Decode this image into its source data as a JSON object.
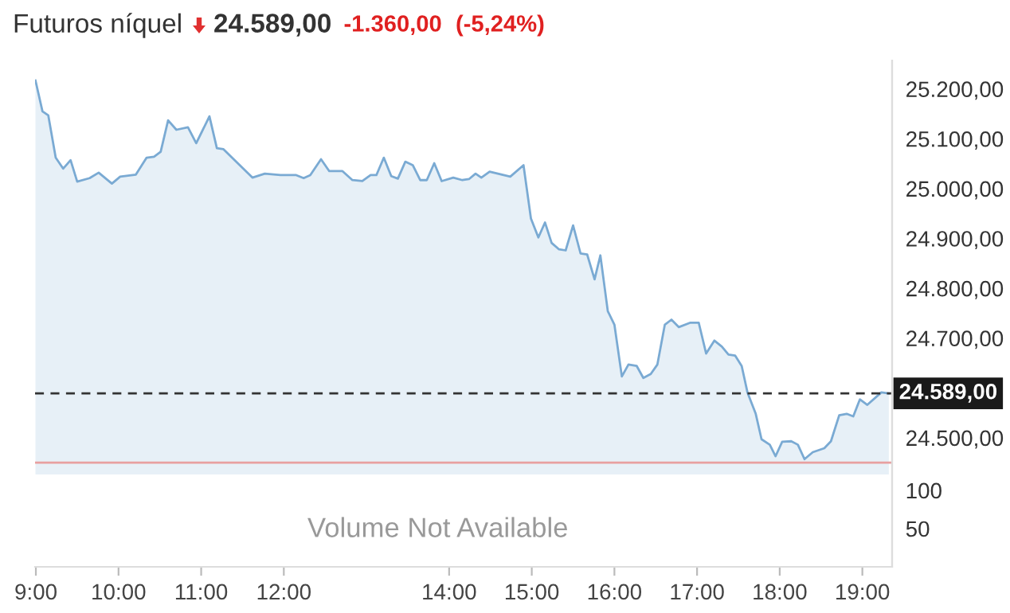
{
  "chart_data": {
    "type": "area",
    "title": "Futuros níquel",
    "annotations": [
      "24.589,00",
      "-1.360,00",
      "(-5,24%)",
      "Volume Not Available"
    ],
    "series": [
      {
        "color": "#7aaad3",
        "x": [
          8.995,
          9.08,
          9.15,
          9.24,
          9.33,
          9.42,
          9.5,
          9.65,
          9.76,
          9.92,
          10.02,
          10.21,
          10.34,
          10.43,
          10.51,
          10.6,
          10.7,
          10.84,
          10.94,
          11.1,
          11.19,
          11.27,
          11.62,
          11.77,
          11.96,
          12.15,
          12.24,
          12.32,
          12.45,
          12.55,
          12.71,
          12.83,
          12.95,
          13.05,
          13.12,
          13.21,
          13.3,
          13.38,
          13.47,
          13.56,
          13.65,
          13.73,
          13.82,
          13.91,
          14.05,
          14.16,
          14.24,
          14.32,
          14.39,
          14.49,
          14.74,
          14.9,
          14.99,
          15.08,
          15.16,
          15.24,
          15.33,
          15.41,
          15.5,
          15.59,
          15.67,
          15.76,
          15.83,
          15.92,
          16.0,
          16.09,
          16.17,
          16.27,
          16.35,
          16.44,
          16.52,
          16.61,
          16.69,
          16.78,
          16.92,
          17.02,
          17.11,
          17.21,
          17.3,
          17.38,
          17.46,
          17.54,
          17.61,
          17.71,
          17.78,
          17.88,
          17.95,
          18.03,
          18.14,
          18.22,
          18.3,
          18.4,
          18.54,
          18.62,
          18.72,
          18.81,
          18.89,
          18.97,
          19.06,
          19.23,
          19.32
        ],
        "values": [
          25217,
          25155,
          25147,
          25062,
          25040,
          25057,
          25014,
          25021,
          25032,
          25010,
          25024,
          25028,
          25062,
          25064,
          25074,
          25137,
          25118,
          25123,
          25091,
          25145,
          25081,
          25079,
          25022,
          25030,
          25027,
          25027,
          25021,
          25027,
          25059,
          25035,
          25035,
          25017,
          25015,
          25027,
          25027,
          25062,
          25025,
          25020,
          25054,
          25047,
          25017,
          25017,
          25051,
          25015,
          25022,
          25017,
          25019,
          25030,
          25022,
          25034,
          25024,
          25047,
          24940,
          24902,
          24932,
          24891,
          24878,
          24876,
          24926,
          24870,
          24868,
          24818,
          24866,
          24754,
          24727,
          24623,
          24647,
          24644,
          24620,
          24628,
          24647,
          24727,
          24737,
          24722,
          24731,
          24731,
          24669,
          24695,
          24683,
          24667,
          24665,
          24644,
          24591,
          24548,
          24497,
          24486,
          24463,
          24492,
          24493,
          24486,
          24457,
          24471,
          24479,
          24493,
          24545,
          24548,
          24543,
          24577,
          24566,
          24591,
          24589
        ]
      }
    ],
    "xlim": [
      8.99,
      19.36
    ],
    "ylim": [
      24241,
      25257
    ],
    "xticks": [
      {
        "value": 9,
        "label": "9:00"
      },
      {
        "value": 10,
        "label": "10:00"
      },
      {
        "value": 11,
        "label": "11:00"
      },
      {
        "value": 12,
        "label": "12:00"
      },
      {
        "value": 14,
        "label": "14:00"
      },
      {
        "value": 15,
        "label": "15:00"
      },
      {
        "value": 16,
        "label": "16:00"
      },
      {
        "value": 17,
        "label": "17:00"
      },
      {
        "value": 18,
        "label": "18:00"
      },
      {
        "value": 19,
        "label": "19:00"
      }
    ],
    "yticks": [
      {
        "value": 24500,
        "label": "24.500,00"
      },
      {
        "value": 24700,
        "label": "24.700,00"
      },
      {
        "value": 24800,
        "label": "24.800,00"
      },
      {
        "value": 24900,
        "label": "24.900,00"
      },
      {
        "value": 25000,
        "label": "25.000,00"
      },
      {
        "value": 25100,
        "label": "25.100,00"
      },
      {
        "value": 25200,
        "label": "25.200,00"
      }
    ],
    "y2lim": [
      0,
      662
    ],
    "y2ticks": [
      50,
      100
    ],
    "ref_lines": [
      {
        "axis": "y",
        "value": 24589,
        "label": "24.589,00",
        "color": "#333333",
        "line_style": "dashed"
      },
      {
        "axis": "y",
        "value": 24450,
        "label": null,
        "color": "#e8a0a0",
        "line_style": "solid"
      }
    ],
    "grid": false,
    "legend": false
  }
}
